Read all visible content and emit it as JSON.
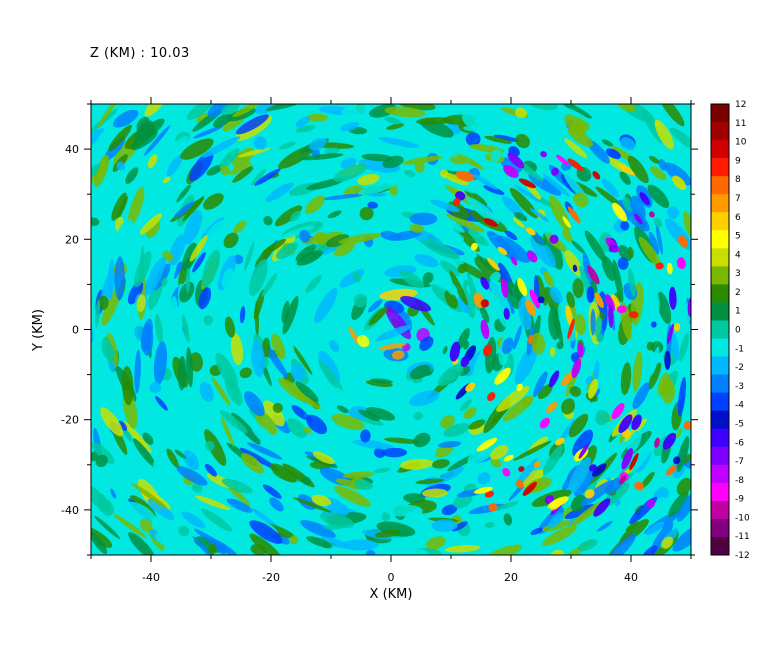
{
  "header": {
    "label": "Z (KM) :",
    "value": "10.03"
  },
  "chart_data": {
    "type": "heatmap",
    "title": "Z (KM) : 10.03",
    "xlabel": "X (KM)",
    "ylabel": "Y (KM)",
    "xlim": [
      -50,
      50
    ],
    "ylim": [
      -50,
      50
    ],
    "xticks": [
      -40,
      -20,
      0,
      20,
      40
    ],
    "yticks": [
      -40,
      -20,
      0,
      20,
      40
    ],
    "colorbar": {
      "min": -12,
      "max": 12,
      "ticks": [
        12,
        11,
        10,
        9,
        8,
        7,
        6,
        5,
        4,
        3,
        2,
        1,
        0,
        -1,
        -2,
        -3,
        -4,
        -5,
        -6,
        -7,
        -8,
        -9,
        -10,
        -11,
        -12
      ],
      "colors": [
        "#7a0000",
        "#a00000",
        "#d00000",
        "#ff1a00",
        "#ff6a00",
        "#ff9a00",
        "#ffd000",
        "#ffff00",
        "#c8e000",
        "#7ab800",
        "#2a8a00",
        "#009040",
        "#00c8a0",
        "#00e8e0",
        "#00b8ff",
        "#0080ff",
        "#0040ff",
        "#0010c8",
        "#4000ff",
        "#8000ff",
        "#c000ff",
        "#ff00ff",
        "#c000a0",
        "#800080",
        "#500040"
      ]
    },
    "field_description_values_range": [
      -12,
      12
    ]
  }
}
